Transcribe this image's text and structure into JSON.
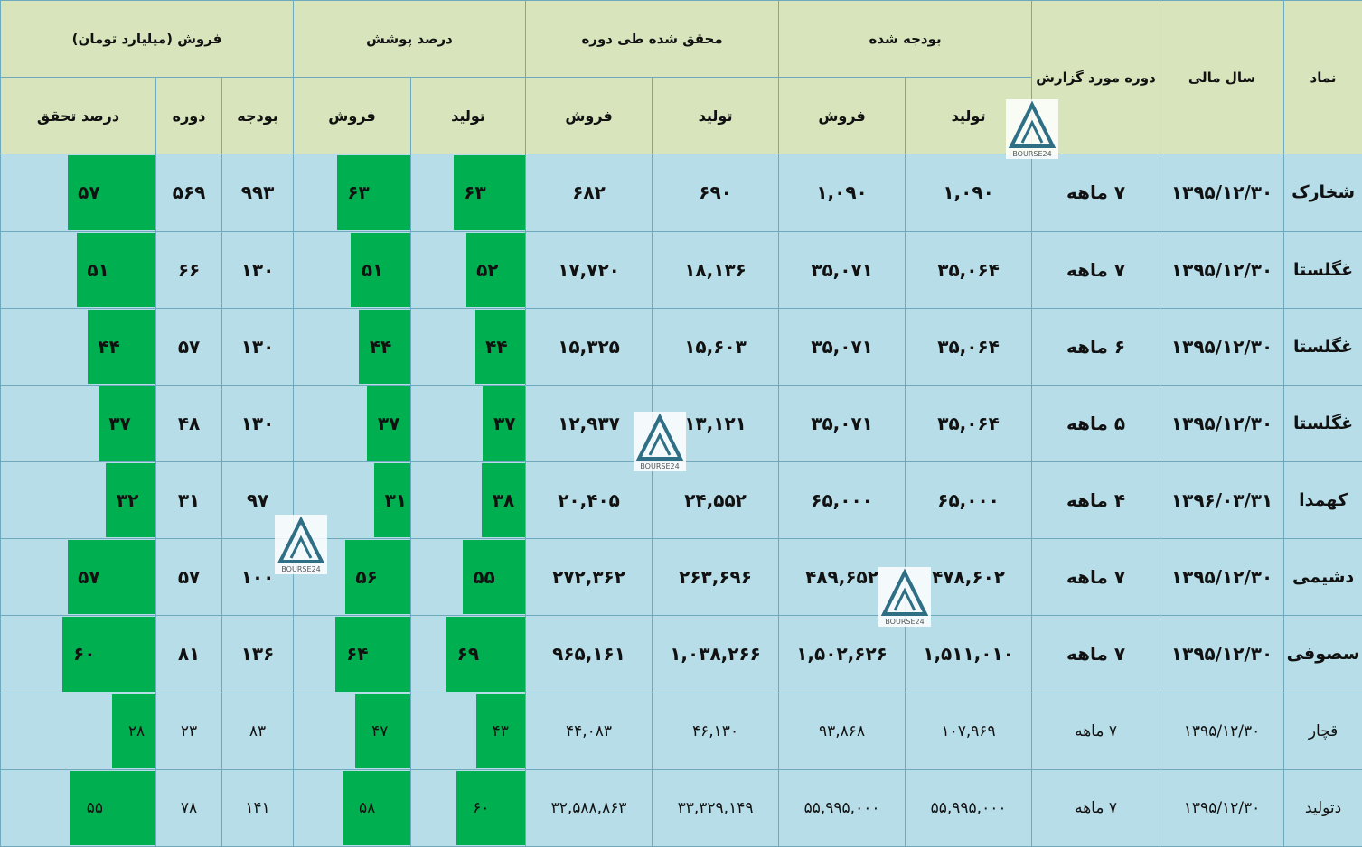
{
  "headers": {
    "symbol": "نماد",
    "fiscal_year": "سال مالی",
    "report_period": "دوره مورد گزارش",
    "budgeted": "بودجه شده",
    "realized": "محقق شده طی دوره",
    "coverage_percent": "درصد پوشش",
    "sales_group": "فروش (میلیارد تومان)",
    "production": "تولید",
    "sales": "فروش",
    "budget": "بودجه",
    "period": "دوره",
    "achievement_percent": "درصد تحقق"
  },
  "watermark_text": "BOURSE24",
  "colors": {
    "header_bg": "#d8e4bc",
    "row_bg": "#b7dde8",
    "bar": "#00b050",
    "grid": "#6fa9bd"
  },
  "rows": [
    {
      "symbol": "شخارک",
      "fiscal_year": "۱۳۹۵/۱۲/۳۰",
      "period": "۷ ماهه",
      "budget_production": "۱,۰۹۰",
      "budget_sales": "۱,۰۹۰",
      "real_production": "۶۹۰",
      "real_sales": "۶۸۲",
      "cov_production": "۶۳",
      "cov_production_pct": 63,
      "cov_sales": "۶۳",
      "cov_sales_pct": 63,
      "sales_budget": "۹۹۳",
      "sales_period": "۵۶۹",
      "achieve": "۵۷",
      "achieve_pct": 57
    },
    {
      "symbol": "غگلستا",
      "fiscal_year": "۱۳۹۵/۱۲/۳۰",
      "period": "۷ ماهه",
      "budget_production": "۳۵,۰۶۴",
      "budget_sales": "۳۵,۰۷۱",
      "real_production": "۱۸,۱۳۶",
      "real_sales": "۱۷,۷۲۰",
      "cov_production": "۵۲",
      "cov_production_pct": 52,
      "cov_sales": "۵۱",
      "cov_sales_pct": 51,
      "sales_budget": "۱۳۰",
      "sales_period": "۶۶",
      "achieve": "۵۱",
      "achieve_pct": 51
    },
    {
      "symbol": "غگلستا",
      "fiscal_year": "۱۳۹۵/۱۲/۳۰",
      "period": "۶ ماهه",
      "budget_production": "۳۵,۰۶۴",
      "budget_sales": "۳۵,۰۷۱",
      "real_production": "۱۵,۶۰۳",
      "real_sales": "۱۵,۳۲۵",
      "cov_production": "۴۴",
      "cov_production_pct": 44,
      "cov_sales": "۴۴",
      "cov_sales_pct": 44,
      "sales_budget": "۱۳۰",
      "sales_period": "۵۷",
      "achieve": "۴۴",
      "achieve_pct": 44
    },
    {
      "symbol": "غگلستا",
      "fiscal_year": "۱۳۹۵/۱۲/۳۰",
      "period": "۵ ماهه",
      "budget_production": "۳۵,۰۶۴",
      "budget_sales": "۳۵,۰۷۱",
      "real_production": "۱۳,۱۲۱",
      "real_sales": "۱۲,۹۳۷",
      "cov_production": "۳۷",
      "cov_production_pct": 37,
      "cov_sales": "۳۷",
      "cov_sales_pct": 37,
      "sales_budget": "۱۳۰",
      "sales_period": "۴۸",
      "achieve": "۳۷",
      "achieve_pct": 37
    },
    {
      "symbol": "کهمدا",
      "fiscal_year": "۱۳۹۶/۰۳/۳۱",
      "period": "۴ ماهه",
      "budget_production": "۶۵,۰۰۰",
      "budget_sales": "۶۵,۰۰۰",
      "real_production": "۲۴,۵۵۲",
      "real_sales": "۲۰,۴۰۵",
      "cov_production": "۳۸",
      "cov_production_pct": 38,
      "cov_sales": "۳۱",
      "cov_sales_pct": 31,
      "sales_budget": "۹۷",
      "sales_period": "۳۱",
      "achieve": "۳۲",
      "achieve_pct": 32
    },
    {
      "symbol": "دشیمی",
      "fiscal_year": "۱۳۹۵/۱۲/۳۰",
      "period": "۷ ماهه",
      "budget_production": "۴۷۸,۶۰۲",
      "budget_sales": "۴۸۹,۶۵۲",
      "real_production": "۲۶۳,۶۹۶",
      "real_sales": "۲۷۲,۳۶۲",
      "cov_production": "۵۵",
      "cov_production_pct": 55,
      "cov_sales": "۵۶",
      "cov_sales_pct": 56,
      "sales_budget": "۱۰۰",
      "sales_period": "۵۷",
      "achieve": "۵۷",
      "achieve_pct": 57
    },
    {
      "symbol": "سصوفی",
      "fiscal_year": "۱۳۹۵/۱۲/۳۰",
      "period": "۷ ماهه",
      "budget_production": "۱,۵۱۱,۰۱۰",
      "budget_sales": "۱,۵۰۲,۶۲۶",
      "real_production": "۱,۰۳۸,۲۶۶",
      "real_sales": "۹۶۵,۱۶۱",
      "cov_production": "۶۹",
      "cov_production_pct": 69,
      "cov_sales": "۶۴",
      "cov_sales_pct": 64,
      "sales_budget": "۱۳۶",
      "sales_period": "۸۱",
      "achieve": "۶۰",
      "achieve_pct": 60
    },
    {
      "symbol": "قچار",
      "fiscal_year": "۱۳۹۵/۱۲/۳۰",
      "period": "۷ ماهه",
      "budget_production": "۱۰۷,۹۶۹",
      "budget_sales": "۹۳,۸۶۸",
      "real_production": "۴۶,۱۳۰",
      "real_sales": "۴۴,۰۸۳",
      "cov_production": "۴۳",
      "cov_production_pct": 43,
      "cov_sales": "۴۷",
      "cov_sales_pct": 47,
      "sales_budget": "۸۳",
      "sales_period": "۲۳",
      "achieve": "۲۸",
      "achieve_pct": 28
    },
    {
      "symbol": "دتولید",
      "fiscal_year": "۱۳۹۵/۱۲/۳۰",
      "period": "۷ ماهه",
      "budget_production": "۵۵,۹۹۵,۰۰۰",
      "budget_sales": "۵۵,۹۹۵,۰۰۰",
      "real_production": "۳۳,۳۲۹,۱۴۹",
      "real_sales": "۳۲,۵۸۸,۸۶۳",
      "cov_production": "۶۰",
      "cov_production_pct": 60,
      "cov_sales": "۵۸",
      "cov_sales_pct": 58,
      "sales_budget": "۱۴۱",
      "sales_period": "۷۸",
      "achieve": "۵۵",
      "achieve_pct": 55
    }
  ]
}
